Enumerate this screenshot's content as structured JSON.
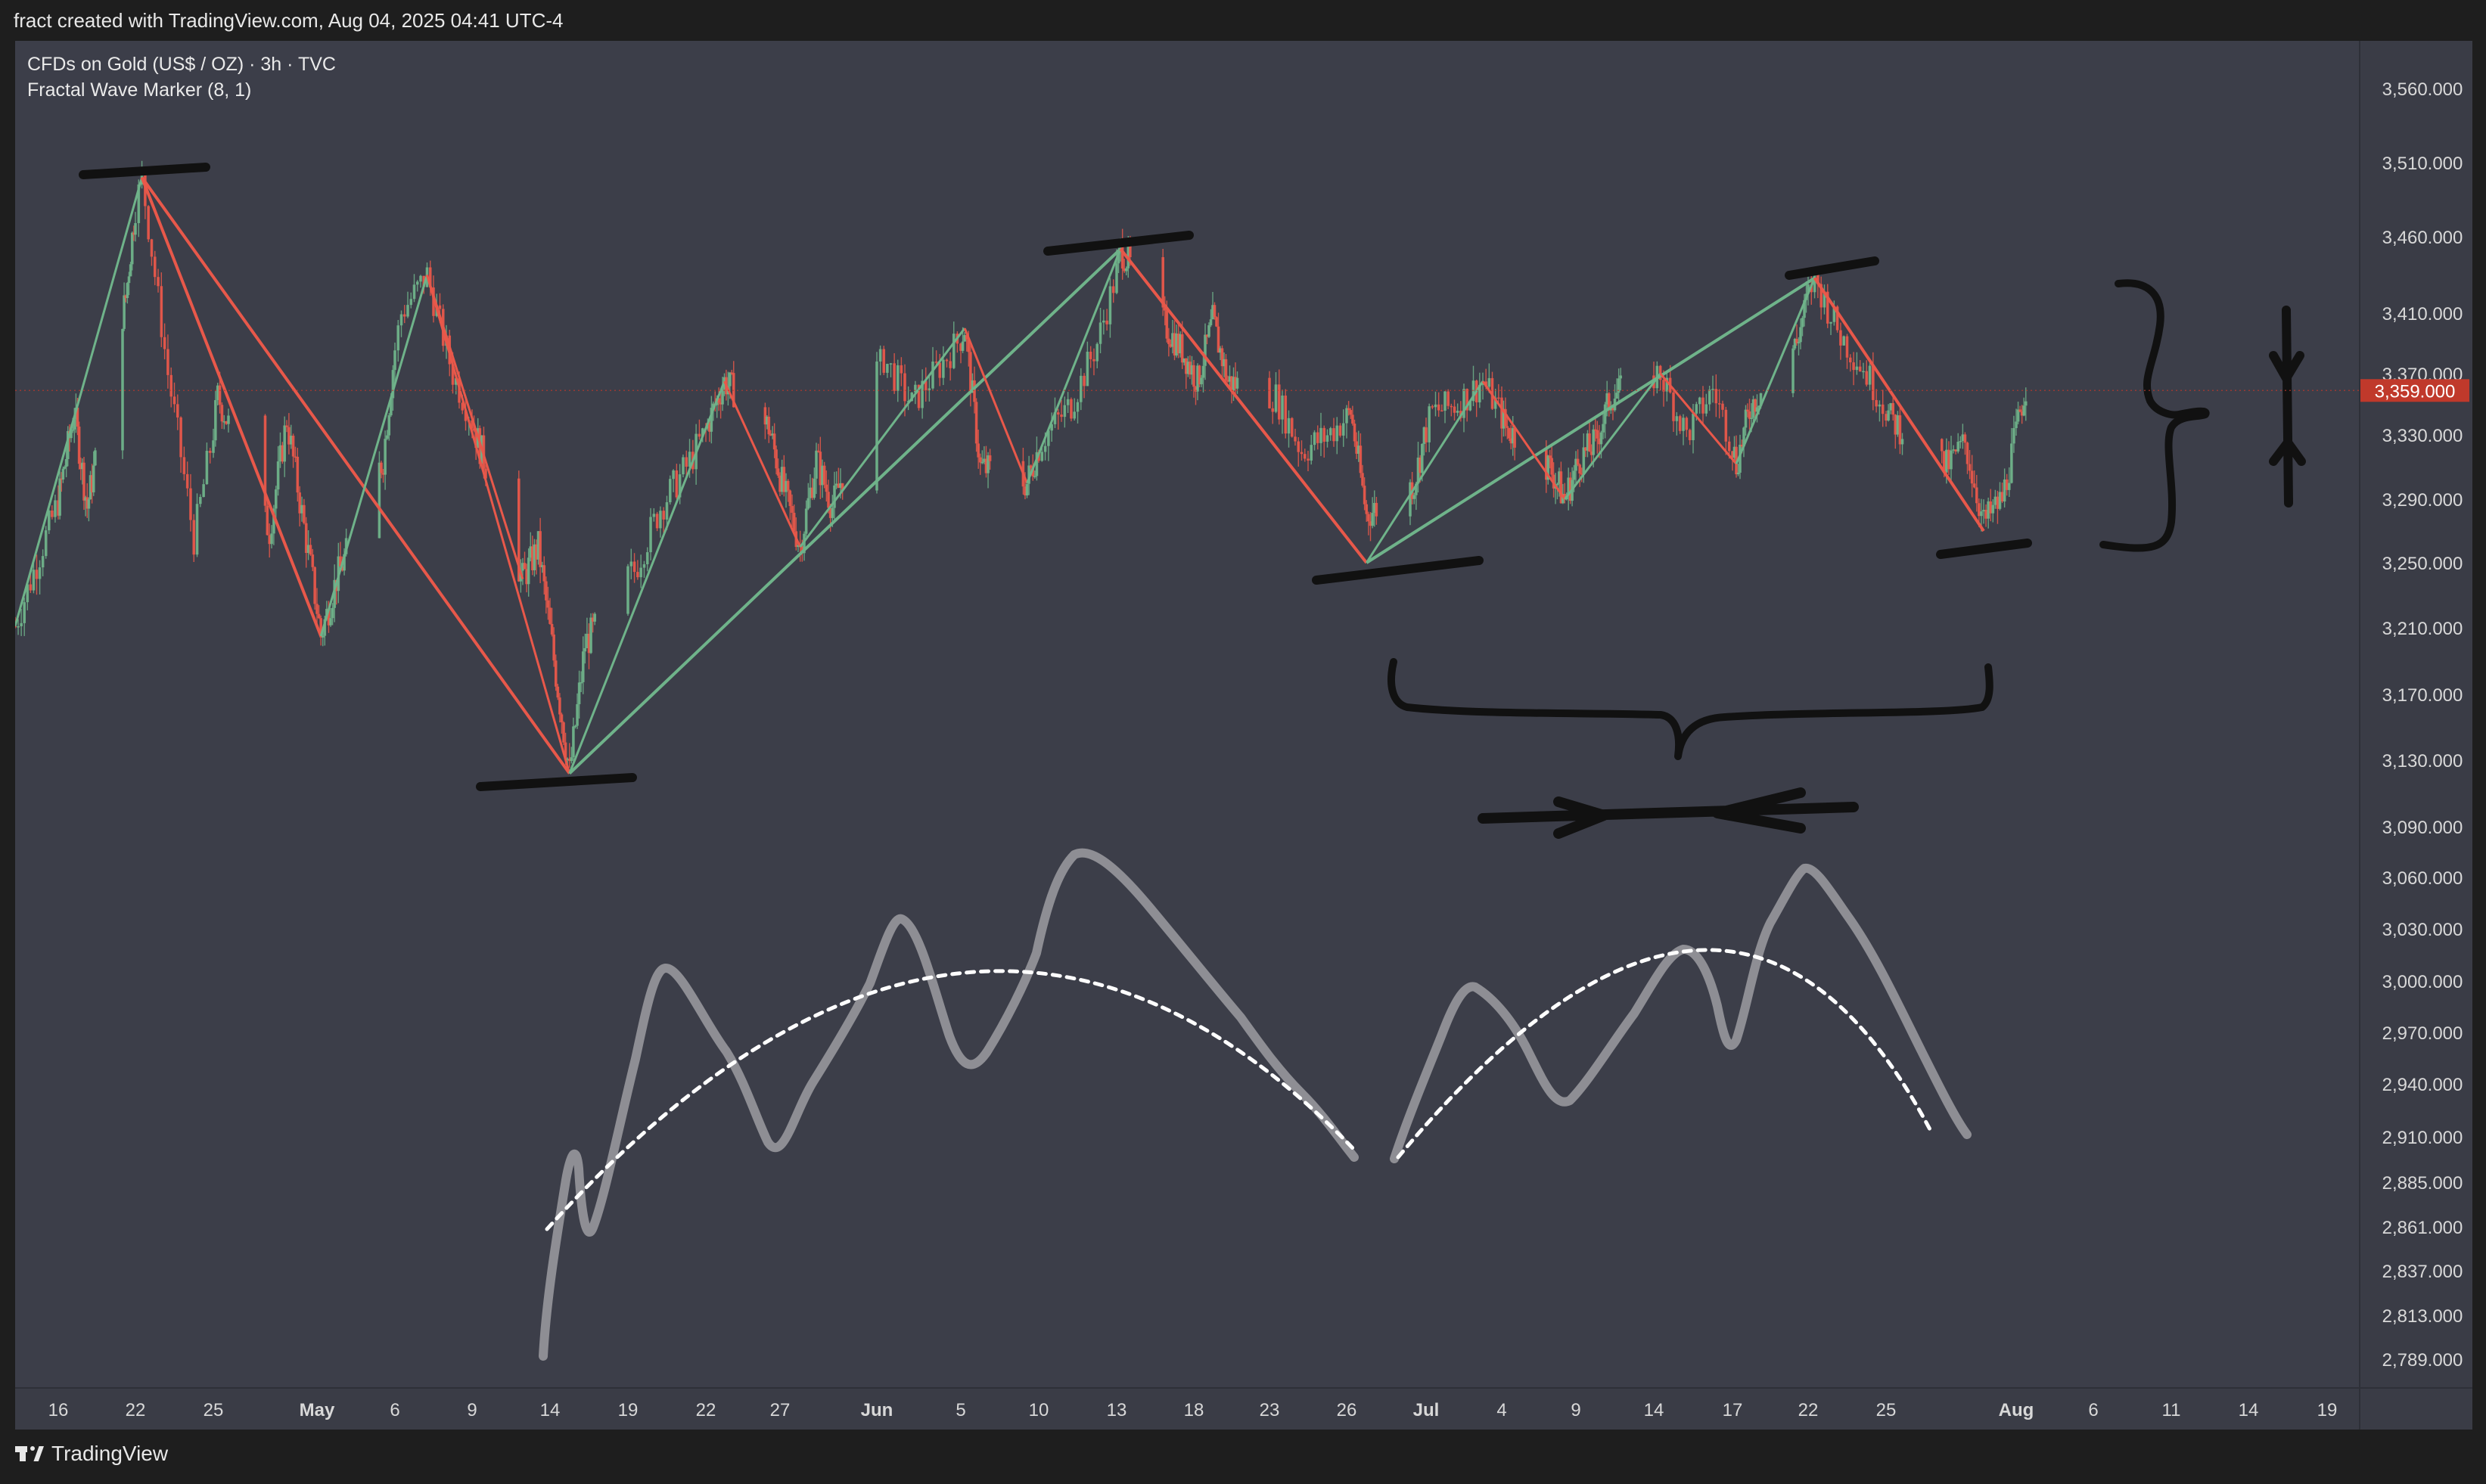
{
  "header": {
    "caption": "fract created with TradingView.com, Aug 04, 2025 04:41 UTC-4"
  },
  "legend": {
    "symbol": "CFDs on Gold (US$ / OZ) · 3h · TVC",
    "indicator": "Fractal Wave Marker (8, 1)"
  },
  "footer": {
    "brand": "TradingView"
  },
  "colors": {
    "bull": "#6fb38a",
    "bear": "#e8584a",
    "annotation": "#111111",
    "sketch": "#8e8e94",
    "dotted": "#ffffff",
    "last_price_bg": "#c0392b"
  },
  "chart_data": {
    "type": "line",
    "instrument": "CFDs on Gold (US$ / OZ)",
    "timeframe": "3h",
    "last_price": {
      "value": 3359.0,
      "label": "3,359.000"
    },
    "y_ticks": [
      {
        "v": 3560,
        "label": "3,560.000"
      },
      {
        "v": 3510,
        "label": "3,510.000"
      },
      {
        "v": 3460,
        "label": "3,460.000"
      },
      {
        "v": 3410,
        "label": "3,410.000"
      },
      {
        "v": 3370,
        "label": "3,370.000"
      },
      {
        "v": 3330,
        "label": "3,330.000"
      },
      {
        "v": 3290,
        "label": "3,290.000"
      },
      {
        "v": 3250,
        "label": "3,250.000"
      },
      {
        "v": 3210,
        "label": "3,210.000"
      },
      {
        "v": 3170,
        "label": "3,170.000"
      },
      {
        "v": 3130,
        "label": "3,130.000"
      },
      {
        "v": 3090,
        "label": "3,090.000"
      },
      {
        "v": 3060,
        "label": "3,060.000"
      },
      {
        "v": 3030,
        "label": "3,030.000"
      },
      {
        "v": 3000,
        "label": "3,000.000"
      },
      {
        "v": 2970,
        "label": "2,970.000"
      },
      {
        "v": 2940,
        "label": "2,940.000"
      },
      {
        "v": 2910,
        "label": "2,910.000"
      },
      {
        "v": 2885,
        "label": "2,885.000"
      },
      {
        "v": 2861,
        "label": "2,861.000"
      },
      {
        "v": 2837,
        "label": "2,837.000"
      },
      {
        "v": 2813,
        "label": "2,813.000"
      },
      {
        "v": 2789,
        "label": "2,789.000"
      }
    ],
    "x_ticks": [
      {
        "d": "2025-04-16",
        "label": "16",
        "bold": false
      },
      {
        "d": "2025-04-22",
        "label": "22",
        "bold": false
      },
      {
        "d": "2025-04-25",
        "label": "25",
        "bold": false
      },
      {
        "d": "2025-05-01",
        "label": "May",
        "bold": true
      },
      {
        "d": "2025-05-06",
        "label": "6",
        "bold": false
      },
      {
        "d": "2025-05-09",
        "label": "9",
        "bold": false
      },
      {
        "d": "2025-05-14",
        "label": "14",
        "bold": false
      },
      {
        "d": "2025-05-19",
        "label": "19",
        "bold": false
      },
      {
        "d": "2025-05-22",
        "label": "22",
        "bold": false
      },
      {
        "d": "2025-05-27",
        "label": "27",
        "bold": false
      },
      {
        "d": "2025-06-02",
        "label": "Jun",
        "bold": true
      },
      {
        "d": "2025-06-05",
        "label": "5",
        "bold": false
      },
      {
        "d": "2025-06-10",
        "label": "10",
        "bold": false
      },
      {
        "d": "2025-06-13",
        "label": "13",
        "bold": false
      },
      {
        "d": "2025-06-18",
        "label": "18",
        "bold": false
      },
      {
        "d": "2025-06-23",
        "label": "23",
        "bold": false
      },
      {
        "d": "2025-06-26",
        "label": "26",
        "bold": false
      },
      {
        "d": "2025-07-01",
        "label": "Jul",
        "bold": true
      },
      {
        "d": "2025-07-04",
        "label": "4",
        "bold": false
      },
      {
        "d": "2025-07-09",
        "label": "9",
        "bold": false
      },
      {
        "d": "2025-07-14",
        "label": "14",
        "bold": false
      },
      {
        "d": "2025-07-17",
        "label": "17",
        "bold": false
      },
      {
        "d": "2025-07-22",
        "label": "22",
        "bold": false
      },
      {
        "d": "2025-07-25",
        "label": "25",
        "bold": false
      },
      {
        "d": "2025-08-01",
        "label": "Aug",
        "bold": true
      },
      {
        "d": "2025-08-06",
        "label": "6",
        "bold": false
      },
      {
        "d": "2025-08-11",
        "label": "11",
        "bold": false
      },
      {
        "d": "2025-08-14",
        "label": "14",
        "bold": false
      },
      {
        "d": "2025-08-19",
        "label": "19",
        "bold": false
      }
    ],
    "price_path": [
      [
        "2025-04-14T06:00",
        3211
      ],
      [
        "2025-04-16T06:00",
        3300
      ],
      [
        "2025-04-17T06:00",
        3345
      ],
      [
        "2025-04-18T06:00",
        3285
      ],
      [
        "2025-04-21T06:00",
        3420
      ],
      [
        "2025-04-22T06:00",
        3500
      ],
      [
        "2025-04-23T06:00",
        3370
      ],
      [
        "2025-04-24T06:00",
        3265
      ],
      [
        "2025-04-25T06:00",
        3355
      ],
      [
        "2025-04-28T06:00",
        3270
      ],
      [
        "2025-04-29T06:00",
        3340
      ],
      [
        "2025-05-01T06:00",
        3205
      ],
      [
        "2025-05-02T06:00",
        3240
      ],
      [
        "2025-05-05T06:00",
        3315
      ],
      [
        "2025-05-06T06:00",
        3410
      ],
      [
        "2025-05-07T06:00",
        3435
      ],
      [
        "2025-05-08T06:00",
        3370
      ],
      [
        "2025-05-09T06:00",
        3330
      ],
      [
        "2025-05-12T06:00",
        3240
      ],
      [
        "2025-05-13T06:00",
        3260
      ],
      [
        "2025-05-15T06:00",
        3122
      ],
      [
        "2025-05-16T06:00",
        3200
      ],
      [
        "2025-05-19T06:00",
        3245
      ],
      [
        "2025-05-20T06:00",
        3285
      ],
      [
        "2025-05-21T06:00",
        3310
      ],
      [
        "2025-05-22T06:00",
        3340
      ],
      [
        "2025-05-23T06:00",
        3365
      ],
      [
        "2025-05-26T06:00",
        3335
      ],
      [
        "2025-05-27T06:00",
        3295
      ],
      [
        "2025-05-28T06:00",
        3260
      ],
      [
        "2025-05-29T06:00",
        3315
      ],
      [
        "2025-05-30T06:00",
        3285
      ],
      [
        "2025-06-02T06:00",
        3380
      ],
      [
        "2025-06-03T06:00",
        3350
      ],
      [
        "2025-06-05T06:00",
        3400
      ],
      [
        "2025-06-06T06:00",
        3310
      ],
      [
        "2025-06-09T06:00",
        3300
      ],
      [
        "2025-06-10T06:00",
        3330
      ],
      [
        "2025-06-11T06:00",
        3350
      ],
      [
        "2025-06-12T06:00",
        3390
      ],
      [
        "2025-06-13T06:00",
        3452
      ],
      [
        "2025-06-16T06:00",
        3400
      ],
      [
        "2025-06-17T06:00",
        3385
      ],
      [
        "2025-06-18T06:00",
        3365
      ],
      [
        "2025-06-19T06:00",
        3405
      ],
      [
        "2025-06-20T06:00",
        3365
      ],
      [
        "2025-06-23T06:00",
        3355
      ],
      [
        "2025-06-24T06:00",
        3320
      ],
      [
        "2025-06-25T06:00",
        3330
      ],
      [
        "2025-06-26T06:00",
        3345
      ],
      [
        "2025-06-27T06:00",
        3280
      ],
      [
        "2025-06-30T06:00",
        3300
      ],
      [
        "2025-07-01T06:00",
        3345
      ],
      [
        "2025-07-02T06:00",
        3350
      ],
      [
        "2025-07-03T06:00",
        3365
      ],
      [
        "2025-07-04T06:00",
        3335
      ],
      [
        "2025-07-07T06:00",
        3310
      ],
      [
        "2025-07-08T06:00",
        3290
      ],
      [
        "2025-07-09T06:00",
        3315
      ],
      [
        "2025-07-10T06:00",
        3325
      ],
      [
        "2025-07-11T06:00",
        3355
      ],
      [
        "2025-07-14T06:00",
        3370
      ],
      [
        "2025-07-15T06:00",
        3330
      ],
      [
        "2025-07-16T06:00",
        3360
      ],
      [
        "2025-07-17T06:00",
        3312
      ],
      [
        "2025-07-18T06:00",
        3350
      ],
      [
        "2025-07-21T06:00",
        3390
      ],
      [
        "2025-07-22T06:00",
        3433
      ],
      [
        "2025-07-23T06:00",
        3395
      ],
      [
        "2025-07-24T06:00",
        3370
      ],
      [
        "2025-07-25T06:00",
        3340
      ],
      [
        "2025-07-28T06:00",
        3310
      ],
      [
        "2025-07-29T06:00",
        3325
      ],
      [
        "2025-07-30T06:00",
        3275
      ],
      [
        "2025-07-31T06:00",
        3290
      ],
      [
        "2025-08-01T06:00",
        3345
      ],
      [
        "2025-08-01T15:00",
        3362
      ]
    ],
    "fractal_segments": [
      [
        "2025-04-14T06:00",
        3211,
        "2025-04-22T06:00",
        3500,
        "bull"
      ],
      [
        "2025-04-22T06:00",
        3500,
        "2025-05-01T06:00",
        3205,
        "bear"
      ],
      [
        "2025-04-22T06:00",
        3500,
        "2025-05-15T06:00",
        3122,
        "bear"
      ],
      [
        "2025-05-01T06:00",
        3205,
        "2025-05-07T06:00",
        3435,
        "bull"
      ],
      [
        "2025-05-07T06:00",
        3435,
        "2025-05-15T06:00",
        3122,
        "bear"
      ],
      [
        "2025-05-07T06:00",
        3435,
        "2025-05-12T06:00",
        3240,
        "bear"
      ],
      [
        "2025-05-15T06:00",
        3122,
        "2025-06-13T06:00",
        3452,
        "bull"
      ],
      [
        "2025-05-15T06:00",
        3122,
        "2025-05-23T06:00",
        3365,
        "bull"
      ],
      [
        "2025-05-23T06:00",
        3365,
        "2025-05-28T06:00",
        3260,
        "bear"
      ],
      [
        "2025-05-28T06:00",
        3260,
        "2025-06-05T06:00",
        3400,
        "bull"
      ],
      [
        "2025-06-05T06:00",
        3400,
        "2025-06-09T06:00",
        3300,
        "bear"
      ],
      [
        "2025-06-09T06:00",
        3300,
        "2025-06-13T06:00",
        3452,
        "bull"
      ],
      [
        "2025-06-13T06:00",
        3452,
        "2025-06-27T06:00",
        3250,
        "bear"
      ],
      [
        "2025-06-27T06:00",
        3250,
        "2025-07-03T06:00",
        3365,
        "bull"
      ],
      [
        "2025-06-27T06:00",
        3250,
        "2025-07-22T06:00",
        3433,
        "bull"
      ],
      [
        "2025-07-03T06:00",
        3365,
        "2025-07-08T06:00",
        3290,
        "bear"
      ],
      [
        "2025-07-08T06:00",
        3290,
        "2025-07-14T06:00",
        3370,
        "bull"
      ],
      [
        "2025-07-14T06:00",
        3370,
        "2025-07-17T06:00",
        3312,
        "bear"
      ],
      [
        "2025-07-17T06:00",
        3312,
        "2025-07-22T06:00",
        3433,
        "bull"
      ],
      [
        "2025-07-22T06:00",
        3433,
        "2025-07-30T06:00",
        3270,
        "bear"
      ],
      [
        "2025-07-22T06:00",
        3433,
        "2025-07-28T06:00",
        3305,
        "bear"
      ]
    ]
  }
}
